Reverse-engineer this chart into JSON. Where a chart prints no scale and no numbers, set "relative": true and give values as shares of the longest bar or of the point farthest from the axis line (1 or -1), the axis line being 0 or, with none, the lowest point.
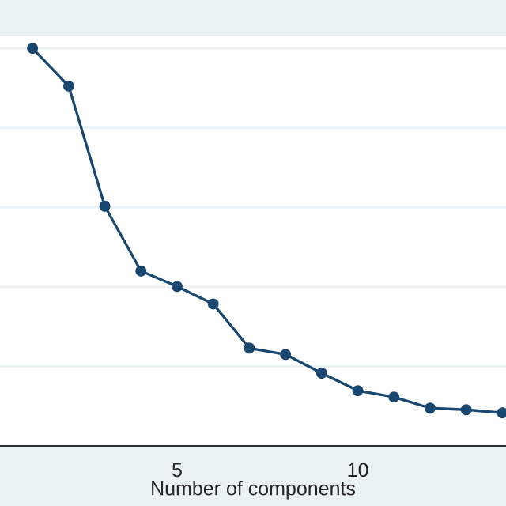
{
  "chart_data": {
    "type": "line",
    "xlabel": "Number of components",
    "relative": true,
    "x": [
      1,
      2,
      3,
      4,
      5,
      6,
      7,
      8,
      9,
      10,
      11,
      12,
      13,
      14
    ],
    "series": [
      {
        "color": "#1a476f",
        "values": [
          1.0,
          0.905,
          0.603,
          0.44,
          0.401,
          0.357,
          0.246,
          0.23,
          0.183,
          0.139,
          0.123,
          0.095,
          0.091,
          0.083
        ]
      }
    ],
    "xlim": [
      0.1,
      14.1
    ],
    "xticks": [
      5,
      10
    ],
    "grid": "y",
    "tick_labels": "x",
    "marker": "circle",
    "line_style": "solid"
  }
}
